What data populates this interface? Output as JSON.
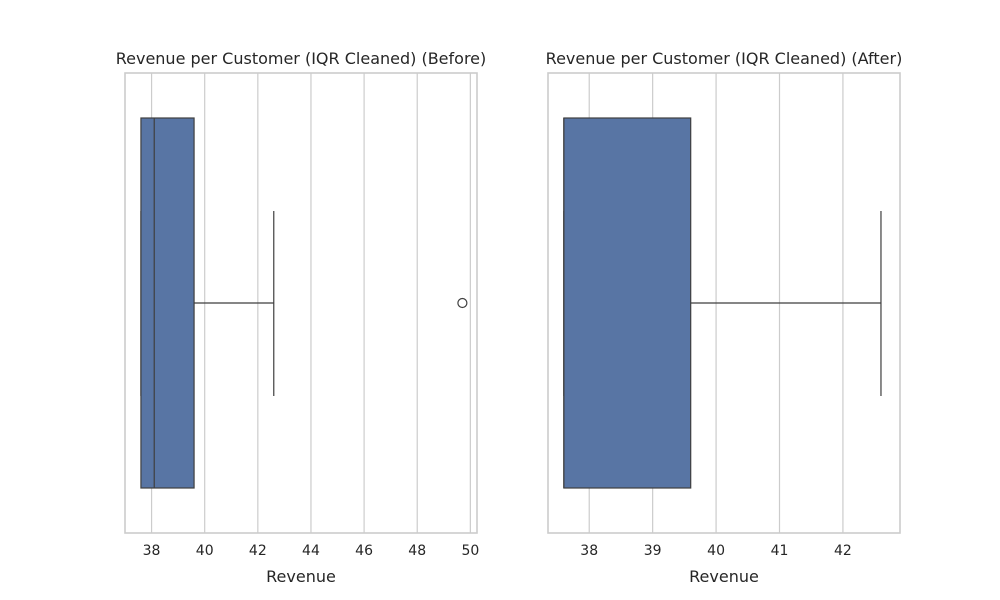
{
  "chart_data": [
    {
      "type": "box",
      "title": "Revenue per Customer (IQR Cleaned) (Before)",
      "xlabel": "Revenue",
      "ylabel": "",
      "xlim": [
        37.0,
        50.25
      ],
      "xticks": [
        38,
        40,
        42,
        44,
        46,
        48,
        50
      ],
      "grid": true,
      "box": {
        "whisker_low": 37.6,
        "q1": 37.6,
        "median": 38.1,
        "q3": 39.6,
        "whisker_high": 42.6,
        "outliers": [
          49.7
        ]
      },
      "color": "#5875a4"
    },
    {
      "type": "box",
      "title": "Revenue per Customer (IQR Cleaned) (After)",
      "xlabel": "Revenue",
      "ylabel": "",
      "xlim": [
        37.35,
        42.9
      ],
      "xticks": [
        38,
        39,
        40,
        41,
        42
      ],
      "grid": true,
      "box": {
        "whisker_low": 37.6,
        "q1": 37.6,
        "median": 37.6,
        "q3": 39.6,
        "whisker_high": 42.6,
        "outliers": []
      },
      "color": "#5875a4"
    }
  ]
}
